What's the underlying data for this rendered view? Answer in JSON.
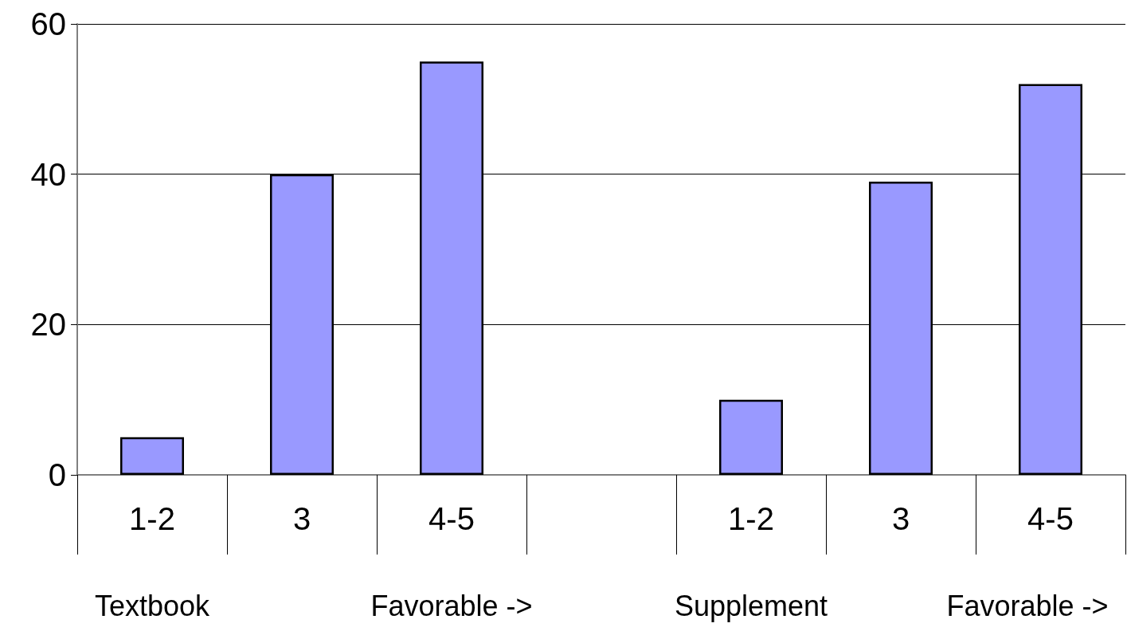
{
  "chart_data": {
    "type": "bar",
    "categories": [
      "1-2",
      "3",
      "4-5",
      null,
      "1-2",
      "3",
      "4-5"
    ],
    "values": [
      5,
      40,
      55,
      null,
      10,
      39,
      52
    ],
    "color": "#9999ff",
    "ylim": [
      0,
      60
    ],
    "yticks": [
      0,
      20,
      40,
      60
    ],
    "grid": "y",
    "annotations": [
      "Textbook",
      "Favorable ->",
      "Supplement",
      "Favorable ->"
    ]
  }
}
